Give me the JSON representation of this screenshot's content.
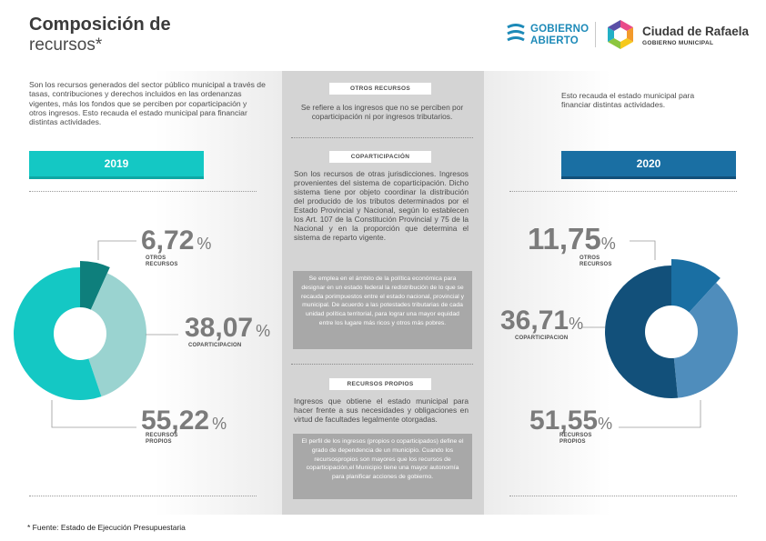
{
  "header": {
    "title_bold": "Composición de",
    "title_light": "recursos*",
    "logo_ga": {
      "line1": "GOBIERNO",
      "line2": "ABIERTO"
    },
    "logo_cr": {
      "line1": "Ciudad de Rafaela",
      "line2": "GOBIERNO MUNICIPAL"
    }
  },
  "left": {
    "description": "Son los recursos generados del sector público municipal a través de tasas, contribuciones y derechos incluidos en las ordenanzas vigentes, más los fondos que se perciben por coparticipación y otros ingresos. Esto recauda el estado municipal para financiar distintas actividades.",
    "year": "2019"
  },
  "right": {
    "description": "Esto recauda el estado municipal para financiar distintas actividades.",
    "year": "2020"
  },
  "middle": {
    "otros": {
      "tag": "OTROS RECURSOS",
      "text": "Se refiere a los ingresos que no se perciben por coparticipación ni por ingresos tributarios."
    },
    "copart": {
      "tag": "COPARTICIPACIÓN",
      "text": "Son los recursos de otras jurisdicciones. Ingresos provenientes del sistema de coparticipación. Dicho sistema tiene por objeto coordinar la distribución del producido de los tributos determinados por el Estado Provincial y Nacional, según lo establecen los Art. 107 de la Constitución Provincial y 75 de la Nacional y en la proporción que determina el sistema de reparto vigente.",
      "box": "Se emplea en el ámbito de la política económica para designar en un estado federal la redistribución de lo que se recauda porimpuestos entre el estado nacional, provincial y municipal. De acuerdo a las potestades tributarias de cada unidad política territorial, para lograr una mayor equidad entre los lugare más ricos y otros más pobres."
    },
    "propios": {
      "tag": "RECURSOS PROPIOS",
      "text": "Ingresos que obtiene el estado municipal para hacer frente a sus necesidades y obligaciones en virtud de facultades legalmente otorgadas.",
      "box": "El perfil de los ingresos (propios o coparticipados) define el grado de dependencia de un municipio. Cuando los recursospropios son mayores que los recursos de coparticipación,el Municipio tiene una mayor autonomía para planificar acciones de gobierno."
    }
  },
  "footnote": "* Fuente: Estado de Ejecución Presupuestaria",
  "chart_data": [
    {
      "type": "pie",
      "title": "2019",
      "categories": [
        "OTROS RECURSOS",
        "COPARTICIPACION",
        "RECURSOS PROPIOS"
      ],
      "values": [
        6.72,
        38.07,
        55.22
      ],
      "display": [
        "6,72",
        "38,07",
        "55,22"
      ],
      "colors": [
        "#0e7f7c",
        "#9ad3d0",
        "#14c8c4"
      ],
      "unit": "%"
    },
    {
      "type": "pie",
      "title": "2020",
      "categories": [
        "OTROS RECURSOS",
        "COPARTICIPACION",
        "RECURSOS PROPIOS"
      ],
      "values": [
        11.75,
        36.71,
        51.55
      ],
      "display": [
        "11,75",
        "36,71",
        "51,55"
      ],
      "colors": [
        "#1a6fa3",
        "#4f8dbc",
        "#12507a"
      ],
      "unit": "%"
    }
  ]
}
